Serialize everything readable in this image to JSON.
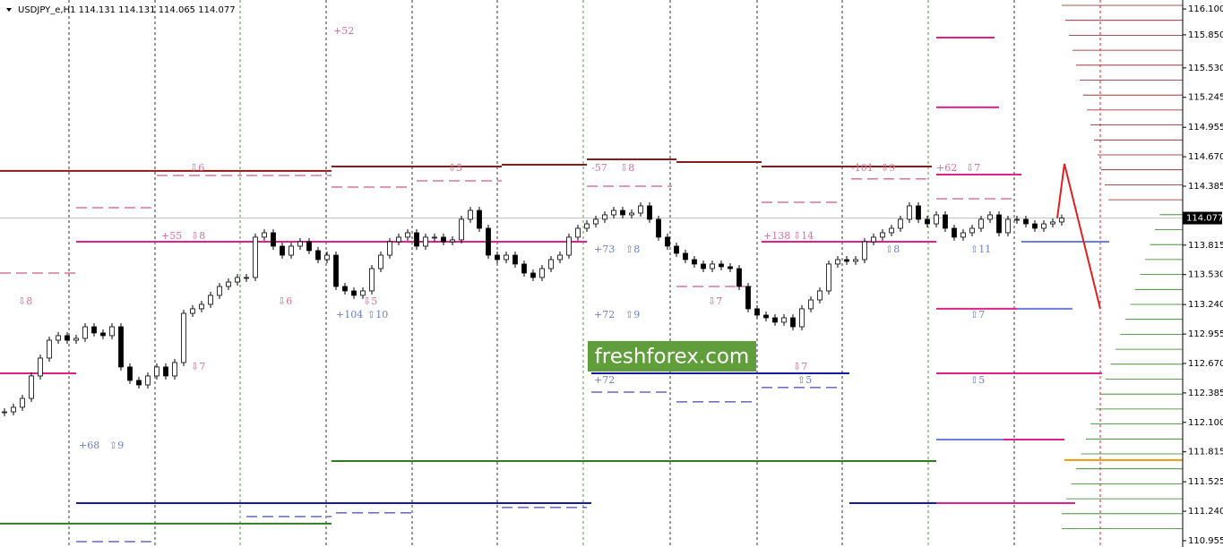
{
  "chart_data": {
    "type": "candlestick",
    "title": "USDJPY_e,H1  114.131 114.131 114.065 114.077",
    "watermark": "freshforex.com",
    "ylim": [
      110.894,
      116.187
    ],
    "yticks": [
      {
        "value": 116.1,
        "label": "116.100"
      },
      {
        "value": 115.85,
        "label": "115.850"
      },
      {
        "value": 115.53,
        "label": "115.530"
      },
      115.245,
      114.955,
      {
        "value": 114.67,
        "label": "114.670"
      },
      114.385,
      113.815,
      {
        "value": 113.53,
        "label": "113.530"
      },
      {
        "value": 113.24,
        "label": "113.240"
      },
      112.955,
      {
        "value": 112.67,
        "label": "112.670"
      },
      112.385,
      {
        "value": 112.1,
        "label": "112.100"
      },
      111.815,
      111.525,
      {
        "value": 111.24,
        "label": "111.240"
      },
      110.955
    ],
    "current_price": 114.077,
    "close": [
      112.202,
      112.246,
      112.332,
      112.549,
      112.722,
      112.895,
      112.939,
      112.895,
      112.913,
      113.025,
      112.965,
      112.939,
      113.025,
      112.636,
      112.506,
      112.462,
      112.549,
      112.636,
      112.549,
      112.679,
      113.155,
      113.199,
      113.242,
      113.329,
      113.415,
      113.458,
      113.502,
      113.502,
      113.892,
      113.935,
      113.805,
      113.718,
      113.805,
      113.848,
      113.762,
      113.675,
      113.718,
      113.415,
      113.372,
      113.329,
      113.372,
      113.588,
      113.718,
      113.848,
      113.892,
      113.935,
      113.805,
      113.892,
      113.892,
      113.848,
      113.866,
      114.065,
      114.151,
      113.978,
      113.718,
      113.675,
      113.718,
      113.632,
      113.545,
      113.502,
      113.588,
      113.675,
      113.718,
      113.892,
      113.978,
      114.021,
      114.065,
      114.108,
      114.151,
      114.108,
      114.125,
      114.195,
      114.065,
      113.892,
      113.805,
      113.736,
      113.675,
      113.632,
      113.588,
      113.632,
      113.606,
      113.588,
      113.415,
      113.199,
      113.138,
      113.112,
      113.069,
      113.112,
      113.025,
      113.199,
      113.285,
      113.372,
      113.632,
      113.675,
      113.658,
      113.675,
      113.848,
      113.892,
      113.935,
      113.978,
      114.065,
      114.195,
      114.065,
      114.021,
      114.108,
      113.978,
      113.892,
      113.935,
      113.978,
      114.065,
      114.108,
      113.935,
      114.065,
      114.065,
      114.021,
      113.978,
      114.021,
      114.039,
      114.077
    ],
    "forecast": {
      "color": "#e02020",
      "values": [
        114.077,
        114.602,
        113.199
      ]
    },
    "levels": [
      {
        "value": 113.848,
        "color": "#e0218a",
        "dash": false
      },
      {
        "value": 113.848,
        "color": "#e0218a",
        "dash": false
      },
      {
        "value": 112.575,
        "color": "#e0218a",
        "dash": false
      },
      {
        "value": 112.575,
        "color": "#e0218a",
        "dash": false
      },
      {
        "value": 113.199,
        "color": "#e0218a",
        "dash": false
      },
      {
        "value": 111.934,
        "color": "#e0218a",
        "dash": false
      },
      {
        "value": 115.823,
        "color": "#e0218a",
        "dash": false
      },
      {
        "value": 115.148,
        "color": "#e0218a",
        "dash": false
      },
      {
        "value": 114.498,
        "color": "#e0218a",
        "dash": false
      },
      {
        "value": 111.319,
        "color": "#1a1aa0",
        "dash": false
      },
      {
        "value": 111.319,
        "color": "#1a1aa0",
        "dash": false
      },
      {
        "value": 112.575,
        "color": "#1a1aa0",
        "dash": false
      },
      {
        "value": 113.199,
        "color": "#6a7fe0",
        "dash": false
      },
      {
        "value": 113.848,
        "color": "#6a7fe0",
        "dash": false
      },
      {
        "value": 111.934,
        "color": "#6a7fe0",
        "dash": false
      },
      {
        "value": 111.319,
        "color": "#e0218a",
        "dash": false
      },
      {
        "value": 113.545,
        "color": "#c0306a",
        "dash": true
      },
      {
        "value": 114.177,
        "color": "#c0306a",
        "dash": true
      },
      {
        "value": 114.489,
        "color": "#c0306a",
        "dash": true
      },
      {
        "value": 114.489,
        "color": "#c0306a",
        "dash": true
      },
      {
        "value": 114.377,
        "color": "#c0306a",
        "dash": true
      },
      {
        "value": 114.437,
        "color": "#c0306a",
        "dash": true
      },
      {
        "value": 114.385,
        "color": "#c0306a",
        "dash": true
      },
      {
        "value": 113.415,
        "color": "#c0306a",
        "dash": true
      },
      {
        "value": 114.229,
        "color": "#c0306a",
        "dash": true
      },
      {
        "value": 114.455,
        "color": "#c0306a",
        "dash": true
      },
      {
        "value": 114.264,
        "color": "#c0306a",
        "dash": true
      },
      {
        "value": 110.946,
        "color": "#1a1aa0",
        "dash": true
      },
      {
        "value": 111.189,
        "color": "#1a1aa0",
        "dash": true
      },
      {
        "value": 111.224,
        "color": "#1a1aa0",
        "dash": true
      },
      {
        "value": 111.276,
        "color": "#1a1aa0",
        "dash": true
      },
      {
        "value": 112.393,
        "color": "#1a1aa0",
        "dash": true
      },
      {
        "value": 112.298,
        "color": "#1a1aa0",
        "dash": true
      },
      {
        "value": 112.437,
        "color": "#1a1aa0",
        "dash": true
      },
      {
        "value": 114.533,
        "color": "#8b1a1a",
        "dash": false
      },
      {
        "value": 114.576,
        "color": "#8b1a1a",
        "dash": false
      },
      {
        "value": 114.593,
        "color": "#8b1a1a",
        "dash": false
      },
      {
        "value": 114.645,
        "color": "#8b1a1a",
        "dash": false
      },
      {
        "value": 114.619,
        "color": "#8b1a1a",
        "dash": false
      },
      {
        "value": 114.576,
        "color": "#8b1a1a",
        "dash": false
      },
      {
        "value": 111.12,
        "color": "#2e7d1e",
        "dash": false
      },
      {
        "value": 111.726,
        "color": "#2e7d1e",
        "dash": false
      },
      {
        "value": 111.735,
        "color": "#e89a10",
        "dash": false
      }
    ],
    "annotations": [
      {
        "text": "+52",
        "color": "#d0709a"
      },
      {
        "text": "⇩8",
        "color": "#d0709a"
      },
      {
        "text": "⇩6",
        "color": "#d0709a"
      },
      {
        "text": "+55",
        "color": "#d0709a"
      },
      {
        "text": "⇩8",
        "color": "#d0709a"
      },
      {
        "text": "⇩6",
        "color": "#d0709a"
      },
      {
        "text": "⇩5",
        "color": "#d0709a"
      },
      {
        "text": "+104",
        "color": "#6a7fc8"
      },
      {
        "text": "⇧10",
        "color": "#6a7fc8"
      },
      {
        "text": "⇩5",
        "color": "#d0709a"
      },
      {
        "text": "-57",
        "color": "#d0709a"
      },
      {
        "text": "⇩8",
        "color": "#d0709a"
      },
      {
        "text": "+73",
        "color": "#6a7fc8"
      },
      {
        "text": "⇧8",
        "color": "#6a7fc8"
      },
      {
        "text": "+72",
        "color": "#6a7fc8"
      },
      {
        "text": "⇧9",
        "color": "#6a7fc8"
      },
      {
        "text": "+68",
        "color": "#6a7fc8"
      },
      {
        "text": "⇧9",
        "color": "#6a7fc8"
      },
      {
        "text": "⇩7",
        "color": "#d0709a"
      },
      {
        "text": "⇩7",
        "color": "#d0709a"
      },
      {
        "text": "+138",
        "color": "#d0709a"
      },
      {
        "text": "⇩14",
        "color": "#d0709a"
      },
      {
        "text": "-101",
        "color": "#d0709a"
      },
      {
        "text": "⇩9",
        "color": "#d0709a"
      },
      {
        "text": "+62",
        "color": "#d0709a"
      },
      {
        "text": "⇩7",
        "color": "#d0709a"
      },
      {
        "text": "⇧8",
        "color": "#6a7fc8"
      },
      {
        "text": "⇧11",
        "color": "#6a7fc8"
      },
      {
        "text": "⇧7",
        "color": "#6a7fc8"
      },
      {
        "text": "+72",
        "color": "#6a7fc8"
      },
      {
        "text": "⇩7",
        "color": "#d0709a"
      },
      {
        "text": "⇧5",
        "color": "#6a7fc8"
      },
      {
        "text": "⇧5",
        "color": "#6a7fc8"
      }
    ]
  }
}
